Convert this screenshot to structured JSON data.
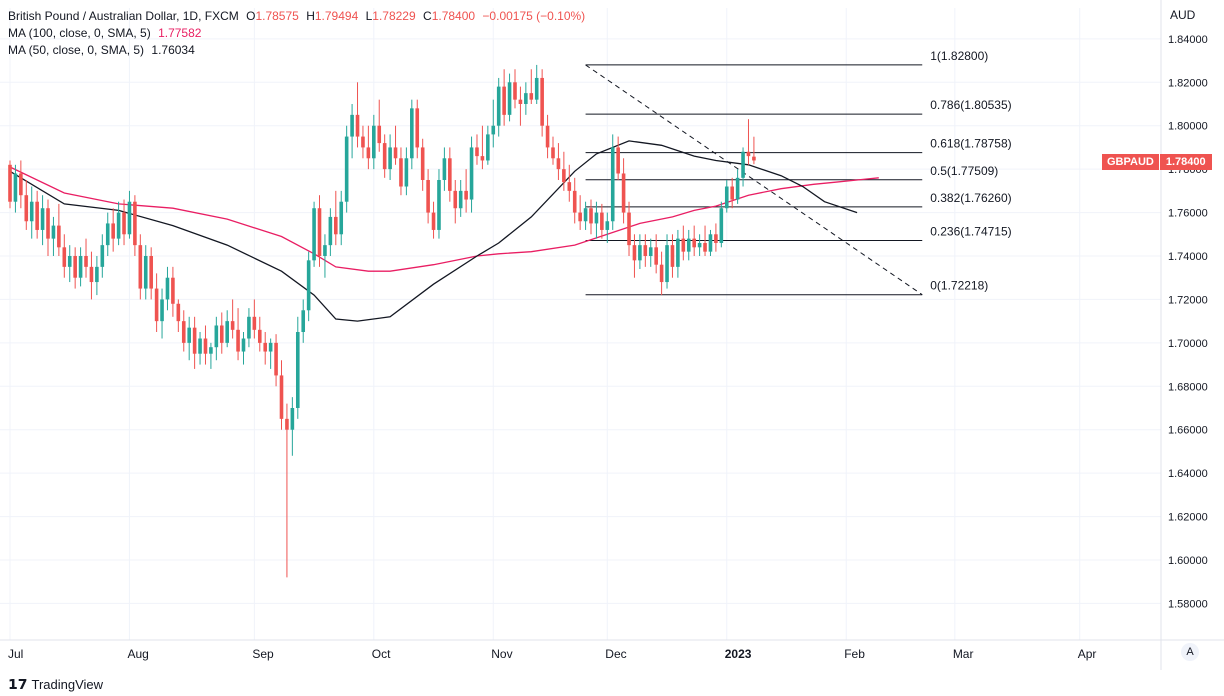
{
  "legend": {
    "title": "British Pound / Australian Dollar, 1D, FXCM",
    "o_label": "O",
    "o": "1.78575",
    "h_label": "H",
    "h": "1.79494",
    "l_label": "L",
    "l": "1.78229",
    "c_label": "C",
    "c": "1.78400",
    "change": "−0.00175 (−0.10%)",
    "ma100_label": "MA (100, close, 0, SMA, 5)",
    "ma100_value": "1.77582",
    "ma50_label": "MA (50, close, 0, SMA, 5)",
    "ma50_value": "1.76034"
  },
  "currency": "AUD",
  "badge": {
    "symbol": "GBPAUD",
    "price": "1.78400"
  },
  "brand": {
    "logo": "𝟭𝟳",
    "name": "TradingView"
  },
  "auto_button": "A",
  "colors": {
    "up": "#26a69a",
    "down": "#ef5350",
    "ma100": "#e91e63",
    "ma50": "#131722",
    "fib": "#131722"
  },
  "chart_data": {
    "type": "candlestick",
    "ylim": [
      1.565,
      1.845
    ],
    "y_ticks": [
      "1.84000",
      "1.82000",
      "1.80000",
      "1.78000",
      "1.76000",
      "1.74000",
      "1.72000",
      "1.70000",
      "1.68000",
      "1.66000",
      "1.64000",
      "1.62000",
      "1.60000",
      "1.58000"
    ],
    "x_ticks": [
      {
        "label": "Jul",
        "bar": 0
      },
      {
        "label": "Aug",
        "bar": 22
      },
      {
        "label": "Sep",
        "bar": 45
      },
      {
        "label": "Oct",
        "bar": 67
      },
      {
        "label": "Nov",
        "bar": 89
      },
      {
        "label": "Dec",
        "bar": 110
      },
      {
        "label": "2023",
        "bar": 132
      },
      {
        "label": "Feb",
        "bar": 154
      },
      {
        "label": "Mar",
        "bar": 174
      },
      {
        "label": "Apr",
        "bar": 197
      }
    ],
    "bold_tick": "2023",
    "candles_ohlc": [
      [
        1.782,
        1.784,
        1.762,
        1.765
      ],
      [
        1.765,
        1.782,
        1.76,
        1.778
      ],
      [
        1.778,
        1.784,
        1.762,
        1.768
      ],
      [
        1.768,
        1.775,
        1.752,
        1.756
      ],
      [
        1.756,
        1.772,
        1.748,
        1.765
      ],
      [
        1.765,
        1.77,
        1.748,
        1.752
      ],
      [
        1.752,
        1.768,
        1.745,
        1.762
      ],
      [
        1.762,
        1.766,
        1.74,
        1.748
      ],
      [
        1.748,
        1.758,
        1.74,
        1.754
      ],
      [
        1.754,
        1.764,
        1.74,
        1.744
      ],
      [
        1.744,
        1.75,
        1.73,
        1.735
      ],
      [
        1.735,
        1.745,
        1.728,
        1.74
      ],
      [
        1.74,
        1.744,
        1.725,
        1.73
      ],
      [
        1.73,
        1.744,
        1.726,
        1.74
      ],
      [
        1.74,
        1.748,
        1.73,
        1.735
      ],
      [
        1.735,
        1.742,
        1.72,
        1.728
      ],
      [
        1.728,
        1.74,
        1.722,
        1.735
      ],
      [
        1.735,
        1.75,
        1.73,
        1.745
      ],
      [
        1.745,
        1.76,
        1.74,
        1.755
      ],
      [
        1.755,
        1.762,
        1.742,
        1.748
      ],
      [
        1.748,
        1.765,
        1.745,
        1.76
      ],
      [
        1.76,
        1.766,
        1.745,
        1.75
      ],
      [
        1.75,
        1.77,
        1.748,
        1.765
      ],
      [
        1.765,
        1.768,
        1.74,
        1.745
      ],
      [
        1.745,
        1.75,
        1.72,
        1.725
      ],
      [
        1.725,
        1.745,
        1.72,
        1.74
      ],
      [
        1.74,
        1.744,
        1.72,
        1.725
      ],
      [
        1.725,
        1.732,
        1.705,
        1.71
      ],
      [
        1.71,
        1.725,
        1.702,
        1.72
      ],
      [
        1.72,
        1.735,
        1.715,
        1.73
      ],
      [
        1.73,
        1.735,
        1.712,
        1.718
      ],
      [
        1.718,
        1.72,
        1.705,
        1.71
      ],
      [
        1.71,
        1.715,
        1.696,
        1.7
      ],
      [
        1.7,
        1.712,
        1.692,
        1.707
      ],
      [
        1.707,
        1.712,
        1.688,
        1.695
      ],
      [
        1.695,
        1.705,
        1.69,
        1.702
      ],
      [
        1.702,
        1.708,
        1.69,
        1.695
      ],
      [
        1.695,
        1.7,
        1.688,
        1.698
      ],
      [
        1.698,
        1.712,
        1.692,
        1.708
      ],
      [
        1.708,
        1.714,
        1.695,
        1.7
      ],
      [
        1.7,
        1.715,
        1.698,
        1.71
      ],
      [
        1.71,
        1.72,
        1.702,
        1.706
      ],
      [
        1.706,
        1.716,
        1.692,
        1.696
      ],
      [
        1.696,
        1.705,
        1.69,
        1.702
      ],
      [
        1.702,
        1.716,
        1.698,
        1.712
      ],
      [
        1.712,
        1.72,
        1.702,
        1.706
      ],
      [
        1.706,
        1.712,
        1.696,
        1.7
      ],
      [
        1.7,
        1.705,
        1.69,
        1.696
      ],
      [
        1.696,
        1.702,
        1.688,
        1.7
      ],
      [
        1.7,
        1.704,
        1.68,
        1.685
      ],
      [
        1.685,
        1.692,
        1.66,
        1.665
      ],
      [
        1.665,
        1.672,
        1.592,
        1.66
      ],
      [
        1.66,
        1.675,
        1.648,
        1.67
      ],
      [
        1.67,
        1.712,
        1.665,
        1.705
      ],
      [
        1.705,
        1.72,
        1.7,
        1.715
      ],
      [
        1.715,
        1.742,
        1.71,
        1.738
      ],
      [
        1.738,
        1.765,
        1.735,
        1.762
      ],
      [
        1.762,
        1.768,
        1.735,
        1.74
      ],
      [
        1.74,
        1.75,
        1.73,
        1.745
      ],
      [
        1.745,
        1.762,
        1.74,
        1.758
      ],
      [
        1.758,
        1.77,
        1.745,
        1.75
      ],
      [
        1.75,
        1.77,
        1.745,
        1.765
      ],
      [
        1.765,
        1.8,
        1.76,
        1.795
      ],
      [
        1.795,
        1.81,
        1.785,
        1.805
      ],
      [
        1.805,
        1.82,
        1.79,
        1.795
      ],
      [
        1.795,
        1.8,
        1.785,
        1.79
      ],
      [
        1.79,
        1.8,
        1.78,
        1.785
      ],
      [
        1.785,
        1.805,
        1.78,
        1.8
      ],
      [
        1.8,
        1.812,
        1.788,
        1.792
      ],
      [
        1.792,
        1.796,
        1.776,
        1.78
      ],
      [
        1.78,
        1.796,
        1.775,
        1.79
      ],
      [
        1.79,
        1.8,
        1.782,
        1.785
      ],
      [
        1.785,
        1.79,
        1.768,
        1.772
      ],
      [
        1.772,
        1.79,
        1.768,
        1.785
      ],
      [
        1.785,
        1.812,
        1.78,
        1.808
      ],
      [
        1.808,
        1.812,
        1.785,
        1.79
      ],
      [
        1.79,
        1.794,
        1.77,
        1.775
      ],
      [
        1.775,
        1.78,
        1.755,
        1.76
      ],
      [
        1.76,
        1.765,
        1.748,
        1.752
      ],
      [
        1.752,
        1.78,
        1.748,
        1.775
      ],
      [
        1.775,
        1.79,
        1.77,
        1.785
      ],
      [
        1.785,
        1.79,
        1.765,
        1.77
      ],
      [
        1.77,
        1.775,
        1.755,
        1.762
      ],
      [
        1.762,
        1.775,
        1.758,
        1.77
      ],
      [
        1.77,
        1.78,
        1.76,
        1.766
      ],
      [
        1.766,
        1.795,
        1.76,
        1.79
      ],
      [
        1.79,
        1.796,
        1.782,
        1.786
      ],
      [
        1.786,
        1.8,
        1.78,
        1.784
      ],
      [
        1.784,
        1.8,
        1.782,
        1.796
      ],
      [
        1.796,
        1.812,
        1.79,
        1.8
      ],
      [
        1.8,
        1.822,
        1.795,
        1.818
      ],
      [
        1.818,
        1.826,
        1.8,
        1.805
      ],
      [
        1.805,
        1.824,
        1.802,
        1.82
      ],
      [
        1.82,
        1.826,
        1.808,
        1.812
      ],
      [
        1.812,
        1.818,
        1.8,
        1.81
      ],
      [
        1.81,
        1.82,
        1.805,
        1.815
      ],
      [
        1.815,
        1.826,
        1.81,
        1.812
      ],
      [
        1.812,
        1.828,
        1.81,
        1.822
      ],
      [
        1.822,
        1.826,
        1.795,
        1.8
      ],
      [
        1.8,
        1.805,
        1.785,
        1.79
      ],
      [
        1.79,
        1.795,
        1.782,
        1.785
      ],
      [
        1.785,
        1.792,
        1.775,
        1.78
      ],
      [
        1.78,
        1.788,
        1.77,
        1.774
      ],
      [
        1.774,
        1.782,
        1.765,
        1.77
      ],
      [
        1.77,
        1.776,
        1.755,
        1.76
      ],
      [
        1.76,
        1.768,
        1.752,
        1.756
      ],
      [
        1.756,
        1.765,
        1.752,
        1.762
      ],
      [
        1.762,
        1.766,
        1.75,
        1.755
      ],
      [
        1.755,
        1.765,
        1.748,
        1.76
      ],
      [
        1.76,
        1.764,
        1.748,
        1.752
      ],
      [
        1.752,
        1.76,
        1.746,
        1.756
      ],
      [
        1.756,
        1.796,
        1.752,
        1.79
      ],
      [
        1.79,
        1.795,
        1.775,
        1.778
      ],
      [
        1.778,
        1.785,
        1.755,
        1.76
      ],
      [
        1.76,
        1.765,
        1.74,
        1.745
      ],
      [
        1.745,
        1.75,
        1.73,
        1.738
      ],
      [
        1.738,
        1.75,
        1.734,
        1.745
      ],
      [
        1.745,
        1.75,
        1.735,
        1.74
      ],
      [
        1.74,
        1.748,
        1.735,
        1.744
      ],
      [
        1.744,
        1.75,
        1.732,
        1.736
      ],
      [
        1.736,
        1.742,
        1.722,
        1.728
      ],
      [
        1.728,
        1.75,
        1.725,
        1.745
      ],
      [
        1.745,
        1.75,
        1.73,
        1.735
      ],
      [
        1.735,
        1.752,
        1.73,
        1.748
      ],
      [
        1.748,
        1.754,
        1.738,
        1.742
      ],
      [
        1.742,
        1.752,
        1.738,
        1.748
      ],
      [
        1.748,
        1.754,
        1.74,
        1.744
      ],
      [
        1.744,
        1.75,
        1.74,
        1.746
      ],
      [
        1.746,
        1.754,
        1.74,
        1.742
      ],
      [
        1.742,
        1.752,
        1.74,
        1.75
      ],
      [
        1.75,
        1.755,
        1.742,
        1.746
      ],
      [
        1.746,
        1.765,
        1.744,
        1.762
      ],
      [
        1.762,
        1.775,
        1.76,
        1.772
      ],
      [
        1.772,
        1.776,
        1.762,
        1.766
      ],
      [
        1.766,
        1.78,
        1.764,
        1.776
      ],
      [
        1.776,
        1.79,
        1.772,
        1.788
      ],
      [
        1.788,
        1.803,
        1.782,
        1.786
      ],
      [
        1.78575,
        1.79494,
        1.78229,
        1.784
      ]
    ],
    "ma100": [
      [
        0,
        1.781
      ],
      [
        10,
        1.769
      ],
      [
        20,
        1.764
      ],
      [
        30,
        1.762
      ],
      [
        40,
        1.757
      ],
      [
        50,
        1.749
      ],
      [
        56,
        1.741
      ],
      [
        60,
        1.735
      ],
      [
        66,
        1.733
      ],
      [
        70,
        1.733
      ],
      [
        78,
        1.736
      ],
      [
        86,
        1.74
      ],
      [
        90,
        1.741
      ],
      [
        96,
        1.742
      ],
      [
        104,
        1.745
      ],
      [
        110,
        1.75
      ],
      [
        116,
        1.755
      ],
      [
        122,
        1.758
      ],
      [
        126,
        1.761
      ],
      [
        130,
        1.763
      ],
      [
        136,
        1.768
      ],
      [
        142,
        1.771
      ],
      [
        148,
        1.773
      ],
      [
        152,
        1.774
      ],
      [
        156,
        1.775
      ],
      [
        160,
        1.776
      ]
    ],
    "ma50": [
      [
        0,
        1.779
      ],
      [
        10,
        1.764
      ],
      [
        20,
        1.761
      ],
      [
        30,
        1.754
      ],
      [
        40,
        1.745
      ],
      [
        50,
        1.733
      ],
      [
        56,
        1.722
      ],
      [
        60,
        1.711
      ],
      [
        64,
        1.71
      ],
      [
        70,
        1.712
      ],
      [
        78,
        1.727
      ],
      [
        86,
        1.74
      ],
      [
        90,
        1.746
      ],
      [
        96,
        1.758
      ],
      [
        104,
        1.779
      ],
      [
        108,
        1.787
      ],
      [
        114,
        1.793
      ],
      [
        120,
        1.791
      ],
      [
        126,
        1.786
      ],
      [
        130,
        1.784
      ],
      [
        136,
        1.782
      ],
      [
        142,
        1.777
      ],
      [
        146,
        1.772
      ],
      [
        150,
        1.765
      ],
      [
        156,
        1.76
      ]
    ],
    "fib_levels": [
      {
        "label": "1(1.82800)",
        "value": 1.828
      },
      {
        "label": "0.786(1.80535)",
        "value": 1.80535
      },
      {
        "label": "0.618(1.78758)",
        "value": 1.78758
      },
      {
        "label": "0.5(1.77509)",
        "value": 1.77509
      },
      {
        "label": "0.382(1.76260)",
        "value": 1.7626
      },
      {
        "label": "0.236(1.74715)",
        "value": 1.74715
      },
      {
        "label": "0(1.72218)",
        "value": 1.72218
      }
    ],
    "fib_start_bar": 106,
    "fib_end_bar": 168,
    "trendline": [
      [
        106,
        1.828
      ],
      [
        168,
        1.72218
      ]
    ]
  }
}
